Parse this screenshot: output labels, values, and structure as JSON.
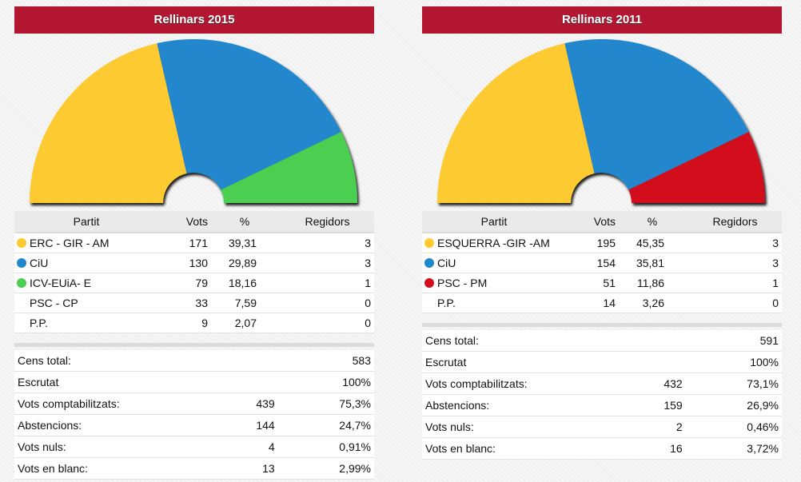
{
  "panels": [
    {
      "title": "Rellinars 2015",
      "headers": {
        "party": "Partit",
        "votes": "Vots",
        "pct": "%",
        "seats": "Regidors"
      },
      "parties": [
        {
          "name": "ERC - GIR - AM",
          "votes": "171",
          "pct": "39,31",
          "seats": "3",
          "color": "#fdca30"
        },
        {
          "name": "CiU",
          "votes": "130",
          "pct": "29,89",
          "seats": "3",
          "color": "#2187cd"
        },
        {
          "name": "ICV-EUiA- E",
          "votes": "79",
          "pct": "18,16",
          "seats": "1",
          "color": "#4ccf51"
        },
        {
          "name": "PSC - CP",
          "votes": "33",
          "pct": "7,59",
          "seats": "0",
          "color": null
        },
        {
          "name": "P.P.",
          "votes": "9",
          "pct": "2,07",
          "seats": "0",
          "color": null
        }
      ],
      "stats": [
        {
          "label": "Cens total:",
          "value": "",
          "pct": "583"
        },
        {
          "label": "Escrutat",
          "value": "",
          "pct": "100%"
        },
        {
          "label": "Vots comptabilitzats:",
          "value": "439",
          "pct": "75,3%"
        },
        {
          "label": "Abstencions:",
          "value": "144",
          "pct": "24,7%"
        },
        {
          "label": "Vots nuls:",
          "value": "4",
          "pct": "0,91%"
        },
        {
          "label": "Vots en blanc:",
          "value": "13",
          "pct": "2,99%"
        }
      ]
    },
    {
      "title": "Rellinars 2011",
      "headers": {
        "party": "Partit",
        "votes": "Vots",
        "pct": "%",
        "seats": "Regidors"
      },
      "parties": [
        {
          "name": "ESQUERRA -GIR -AM",
          "votes": "195",
          "pct": "45,35",
          "seats": "3",
          "color": "#fdca30"
        },
        {
          "name": "CiU",
          "votes": "154",
          "pct": "35,81",
          "seats": "3",
          "color": "#2187cd"
        },
        {
          "name": "PSC - PM",
          "votes": "51",
          "pct": "11,86",
          "seats": "1",
          "color": "#d20f1f"
        },
        {
          "name": "P.P.",
          "votes": "14",
          "pct": "3,26",
          "seats": "0",
          "color": null
        }
      ],
      "stats": [
        {
          "label": "Cens total:",
          "value": "",
          "pct": "591"
        },
        {
          "label": "Escrutat",
          "value": "",
          "pct": "100%"
        },
        {
          "label": "Vots comptabilitzats:",
          "value": "432",
          "pct": "73,1%"
        },
        {
          "label": "Abstencions:",
          "value": "159",
          "pct": "26,9%"
        },
        {
          "label": "Vots nuls:",
          "value": "2",
          "pct": "0,46%"
        },
        {
          "label": "Vots en blanc:",
          "value": "16",
          "pct": "3,72%"
        }
      ]
    }
  ],
  "chart_data": [
    {
      "type": "pie",
      "title": "Rellinars 2015",
      "style": "half-donut seats",
      "categories": [
        "ERC - GIR - AM",
        "CiU",
        "ICV-EUiA- E"
      ],
      "values": [
        3,
        3,
        1
      ],
      "colors": [
        "#fdca30",
        "#2187cd",
        "#4ccf51"
      ]
    },
    {
      "type": "pie",
      "title": "Rellinars 2011",
      "style": "half-donut seats",
      "categories": [
        "ESQUERRA -GIR -AM",
        "CiU",
        "PSC - PM"
      ],
      "values": [
        3,
        3,
        1
      ],
      "colors": [
        "#fdca30",
        "#2187cd",
        "#d20f1f"
      ]
    }
  ]
}
